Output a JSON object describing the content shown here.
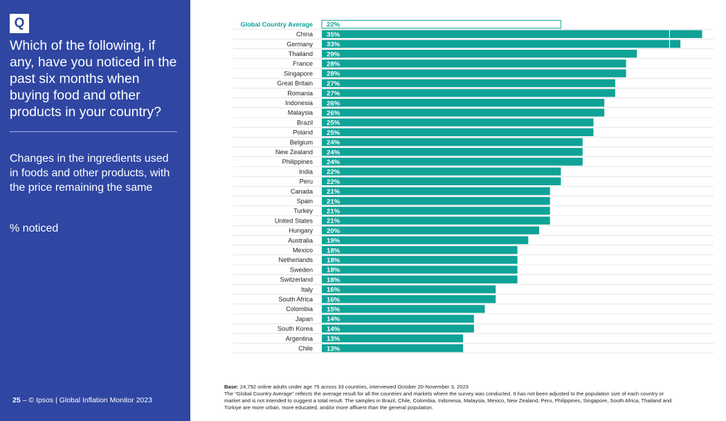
{
  "sidebar": {
    "badge": "Q",
    "question": "Which of the following, if any, have you noticed in the past six months when buying food and other products in your country?",
    "subtitle": "Changes in the ingredients used in foods and other products, with the price remaining the same",
    "unit": "% noticed",
    "footer_page": "25",
    "footer_text": " – © Ipsos | Global Inflation Monitor 2023"
  },
  "notes": {
    "base_label": "Base:",
    "base_text": " 24,792 online adults under age 75 across 33 countries, interviewed October 20-November 3, 2023",
    "explanation": "The “Global Country Average” reflects the average result for all the countries and markets where the survey was conducted. It has not been adjusted to the population size of each country or market and is not intended to suggest a total result. The samples in Brazil, Chile, Colombia, Indonesia, Malaysia, Mexico, New Zealand, Peru, Philippines, Singapore, South Africa, Thailand and Türkiye are more urban, more educated, and/or more affluent than the general population."
  },
  "colors": {
    "sidebar": "#2f46a3",
    "bar": "#0fa398",
    "average_label": "#0fa398",
    "white": "#ffffff"
  },
  "chart_data": {
    "type": "bar",
    "orientation": "horizontal",
    "unit": "%",
    "xlim": [
      0,
      35
    ],
    "categories": [
      "Global Country Average",
      "China",
      "Germany",
      "Thailand",
      "France",
      "Singapore",
      "Great Britain",
      "Romania",
      "Indonesia",
      "Malaysia",
      "Brazil",
      "Poland",
      "Belgium",
      "New Zealand",
      "Philippines",
      "India",
      "Peru",
      "Canada",
      "Spain",
      "Turkey",
      "United States",
      "Hungary",
      "Australia",
      "Mexico",
      "Netherlands",
      "Sweden",
      "Switzerland",
      "Italy",
      "South Africa",
      "Colombia",
      "Japan",
      "South Korea",
      "Argentina",
      "Chile"
    ],
    "values": [
      22,
      35,
      33,
      29,
      28,
      28,
      27,
      27,
      26,
      26,
      25,
      25,
      24,
      24,
      24,
      22,
      22,
      21,
      21,
      21,
      21,
      20,
      19,
      18,
      18,
      18,
      18,
      16,
      16,
      15,
      14,
      14,
      13,
      13
    ],
    "labels": [
      "22%",
      "35%",
      "33%",
      "29%",
      "28%",
      "28%",
      "27%",
      "27%",
      "26%",
      "26%",
      "25%",
      "25%",
      "24%",
      "24%",
      "24%",
      "22%",
      "22%",
      "21%",
      "21%",
      "21%",
      "21%",
      "20%",
      "19%",
      "18%",
      "18%",
      "18%",
      "18%",
      "16%",
      "16%",
      "15%",
      "14%",
      "14%",
      "13%",
      "13%"
    ]
  }
}
